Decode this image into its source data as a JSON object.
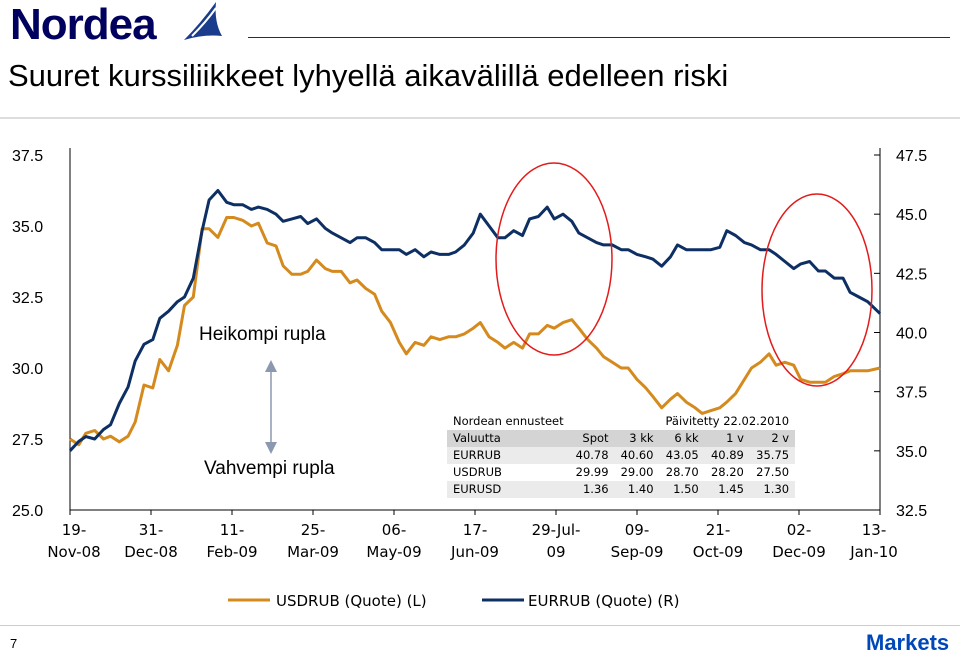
{
  "brand": {
    "name": "Nordea",
    "section": "Markets",
    "page_number": "7",
    "brand_color": "#00005e"
  },
  "slide_title": "Suuret kurssiliikkeet lyhyellä aikavälillä edelleen riski",
  "annotations": {
    "weaker": "Heikompi rupla",
    "stronger": "Vahvempi rupla"
  },
  "forecast_table": {
    "title": "Nordean ennusteet",
    "updated": "Päivitetty 22.02.2010",
    "columns": [
      "Valuutta",
      "Spot",
      "3 kk",
      "6 kk",
      "1 v",
      "2 v"
    ],
    "rows": [
      [
        "EURRUB",
        "40.78",
        "40.60",
        "43.05",
        "40.89",
        "35.75"
      ],
      [
        "USDRUB",
        "29.99",
        "29.00",
        "28.70",
        "28.20",
        "27.50"
      ],
      [
        "EURUSD",
        "1.36",
        "1.40",
        "1.50",
        "1.45",
        "1.30"
      ]
    ]
  },
  "chart_data": {
    "type": "line",
    "x_tick_labels": [
      [
        "19-",
        "Nov-08"
      ],
      [
        "31-",
        "Dec-08"
      ],
      [
        "11-",
        "Feb-09"
      ],
      [
        "25-",
        "Mar-09"
      ],
      [
        "06-",
        "May-09"
      ],
      [
        "17-",
        "Jun-09"
      ],
      [
        "29-Jul-",
        "09"
      ],
      [
        "09-",
        "Sep-09"
      ],
      [
        "21-",
        "Oct-09"
      ],
      [
        "02-",
        "Dec-09"
      ],
      [
        "13-",
        "Jan-10"
      ]
    ],
    "x_range": [
      "2008-11-19",
      "2010-02-22"
    ],
    "left_axis": {
      "ticks": [
        "37.5",
        "35.0",
        "32.5",
        "30.0",
        "27.5",
        "25.0"
      ],
      "ylim": [
        25.0,
        37.5
      ]
    },
    "right_axis": {
      "ticks": [
        "47.5",
        "45.0",
        "42.5",
        "40.0",
        "37.5",
        "35.0",
        "32.5"
      ],
      "ylim": [
        32.5,
        47.5
      ]
    },
    "series": [
      {
        "name": "USDRUB (Quote) (L)",
        "axis": "left",
        "color": "#d58a1e",
        "points": [
          [
            "2008-11-19",
            27.5
          ],
          [
            "2008-11-24",
            27.3
          ],
          [
            "2008-11-28",
            27.7
          ],
          [
            "2008-12-03",
            27.8
          ],
          [
            "2008-12-08",
            27.5
          ],
          [
            "2008-12-12",
            27.6
          ],
          [
            "2008-12-17",
            27.4
          ],
          [
            "2008-12-22",
            27.6
          ],
          [
            "2008-12-26",
            28.1
          ],
          [
            "2008-12-31",
            29.4
          ],
          [
            "2009-01-05",
            29.3
          ],
          [
            "2009-01-09",
            30.3
          ],
          [
            "2009-01-14",
            29.9
          ],
          [
            "2009-01-19",
            30.8
          ],
          [
            "2009-01-23",
            32.2
          ],
          [
            "2009-01-28",
            32.5
          ],
          [
            "2009-02-02",
            34.9
          ],
          [
            "2009-02-06",
            34.9
          ],
          [
            "2009-02-11",
            34.6
          ],
          [
            "2009-02-16",
            35.3
          ],
          [
            "2009-02-20",
            35.3
          ],
          [
            "2009-02-25",
            35.2
          ],
          [
            "2009-03-02",
            35.0
          ],
          [
            "2009-03-06",
            35.1
          ],
          [
            "2009-03-11",
            34.4
          ],
          [
            "2009-03-16",
            34.3
          ],
          [
            "2009-03-20",
            33.6
          ],
          [
            "2009-03-25",
            33.3
          ],
          [
            "2009-03-30",
            33.3
          ],
          [
            "2009-04-03",
            33.4
          ],
          [
            "2009-04-08",
            33.8
          ],
          [
            "2009-04-13",
            33.5
          ],
          [
            "2009-04-17",
            33.4
          ],
          [
            "2009-04-22",
            33.4
          ],
          [
            "2009-04-27",
            33.0
          ],
          [
            "2009-05-01",
            33.1
          ],
          [
            "2009-05-06",
            32.8
          ],
          [
            "2009-05-11",
            32.6
          ],
          [
            "2009-05-15",
            32.0
          ],
          [
            "2009-05-20",
            31.6
          ],
          [
            "2009-05-25",
            30.9
          ],
          [
            "2009-05-29",
            30.5
          ],
          [
            "2009-06-03",
            30.9
          ],
          [
            "2009-06-08",
            30.8
          ],
          [
            "2009-06-12",
            31.1
          ],
          [
            "2009-06-17",
            31.0
          ],
          [
            "2009-06-22",
            31.1
          ],
          [
            "2009-06-26",
            31.1
          ],
          [
            "2009-07-01",
            31.2
          ],
          [
            "2009-07-06",
            31.4
          ],
          [
            "2009-07-10",
            31.6
          ],
          [
            "2009-07-15",
            31.1
          ],
          [
            "2009-07-20",
            30.9
          ],
          [
            "2009-07-24",
            30.7
          ],
          [
            "2009-07-29",
            30.9
          ],
          [
            "2009-08-03",
            30.7
          ],
          [
            "2009-08-07",
            31.2
          ],
          [
            "2009-08-12",
            31.2
          ],
          [
            "2009-08-17",
            31.5
          ],
          [
            "2009-08-21",
            31.4
          ],
          [
            "2009-08-26",
            31.6
          ],
          [
            "2009-08-31",
            31.7
          ],
          [
            "2009-09-04",
            31.4
          ],
          [
            "2009-09-09",
            31.0
          ],
          [
            "2009-09-14",
            30.7
          ],
          [
            "2009-09-18",
            30.4
          ],
          [
            "2009-09-23",
            30.2
          ],
          [
            "2009-09-28",
            30.0
          ],
          [
            "2009-10-02",
            30.0
          ],
          [
            "2009-10-07",
            29.6
          ],
          [
            "2009-10-12",
            29.3
          ],
          [
            "2009-10-16",
            29.0
          ],
          [
            "2009-10-21",
            28.6
          ],
          [
            "2009-10-26",
            28.9
          ],
          [
            "2009-10-30",
            29.1
          ],
          [
            "2009-11-04",
            28.8
          ],
          [
            "2009-11-09",
            28.6
          ],
          [
            "2009-11-13",
            28.4
          ],
          [
            "2009-11-18",
            28.5
          ],
          [
            "2009-11-23",
            28.6
          ],
          [
            "2009-11-27",
            28.8
          ],
          [
            "2009-12-02",
            29.1
          ],
          [
            "2009-12-07",
            29.6
          ],
          [
            "2009-12-11",
            30.0
          ],
          [
            "2009-12-16",
            30.2
          ],
          [
            "2009-12-21",
            30.5
          ],
          [
            "2009-12-25",
            30.1
          ],
          [
            "2009-12-30",
            30.2
          ],
          [
            "2010-01-04",
            30.1
          ],
          [
            "2010-01-08",
            29.6
          ],
          [
            "2010-01-13",
            29.5
          ],
          [
            "2010-01-18",
            29.5
          ],
          [
            "2010-01-22",
            29.5
          ],
          [
            "2010-01-27",
            29.7
          ],
          [
            "2010-02-01",
            29.8
          ],
          [
            "2010-02-05",
            29.9
          ],
          [
            "2010-02-10",
            29.9
          ],
          [
            "2010-02-15",
            29.9
          ],
          [
            "2010-02-22",
            30.0
          ]
        ]
      },
      {
        "name": "EURRUB (Quote) (R)",
        "axis": "right",
        "color": "#0d2f63",
        "points": [
          [
            "2008-11-19",
            35.0
          ],
          [
            "2008-11-24",
            35.4
          ],
          [
            "2008-11-28",
            35.6
          ],
          [
            "2008-12-03",
            35.5
          ],
          [
            "2008-12-08",
            35.9
          ],
          [
            "2008-12-12",
            36.1
          ],
          [
            "2008-12-17",
            37.0
          ],
          [
            "2008-12-22",
            37.7
          ],
          [
            "2008-12-26",
            38.8
          ],
          [
            "2008-12-31",
            39.5
          ],
          [
            "2009-01-05",
            39.7
          ],
          [
            "2009-01-09",
            40.6
          ],
          [
            "2009-01-14",
            40.9
          ],
          [
            "2009-01-19",
            41.3
          ],
          [
            "2009-01-23",
            41.5
          ],
          [
            "2009-01-28",
            42.3
          ],
          [
            "2009-02-02",
            44.3
          ],
          [
            "2009-02-06",
            45.6
          ],
          [
            "2009-02-11",
            46.0
          ],
          [
            "2009-02-16",
            45.5
          ],
          [
            "2009-02-20",
            45.4
          ],
          [
            "2009-02-25",
            45.4
          ],
          [
            "2009-03-02",
            45.2
          ],
          [
            "2009-03-06",
            45.3
          ],
          [
            "2009-03-11",
            45.2
          ],
          [
            "2009-03-16",
            45.0
          ],
          [
            "2009-03-20",
            44.7
          ],
          [
            "2009-03-25",
            44.8
          ],
          [
            "2009-03-30",
            44.9
          ],
          [
            "2009-04-03",
            44.6
          ],
          [
            "2009-04-08",
            44.8
          ],
          [
            "2009-04-13",
            44.4
          ],
          [
            "2009-04-17",
            44.2
          ],
          [
            "2009-04-22",
            44.0
          ],
          [
            "2009-04-27",
            43.8
          ],
          [
            "2009-05-01",
            44.0
          ],
          [
            "2009-05-06",
            44.0
          ],
          [
            "2009-05-11",
            43.8
          ],
          [
            "2009-05-15",
            43.5
          ],
          [
            "2009-05-20",
            43.5
          ],
          [
            "2009-05-25",
            43.5
          ],
          [
            "2009-05-29",
            43.3
          ],
          [
            "2009-06-03",
            43.5
          ],
          [
            "2009-06-08",
            43.2
          ],
          [
            "2009-06-12",
            43.4
          ],
          [
            "2009-06-17",
            43.3
          ],
          [
            "2009-06-22",
            43.3
          ],
          [
            "2009-06-26",
            43.4
          ],
          [
            "2009-07-01",
            43.7
          ],
          [
            "2009-07-06",
            44.2
          ],
          [
            "2009-07-10",
            45.0
          ],
          [
            "2009-07-15",
            44.5
          ],
          [
            "2009-07-20",
            44.0
          ],
          [
            "2009-07-24",
            44.0
          ],
          [
            "2009-07-29",
            44.3
          ],
          [
            "2009-08-03",
            44.1
          ],
          [
            "2009-08-07",
            44.8
          ],
          [
            "2009-08-12",
            44.9
          ],
          [
            "2009-08-17",
            45.3
          ],
          [
            "2009-08-21",
            44.8
          ],
          [
            "2009-08-26",
            45.0
          ],
          [
            "2009-08-31",
            44.7
          ],
          [
            "2009-09-04",
            44.2
          ],
          [
            "2009-09-09",
            44.0
          ],
          [
            "2009-09-14",
            43.8
          ],
          [
            "2009-09-18",
            43.7
          ],
          [
            "2009-09-23",
            43.7
          ],
          [
            "2009-09-28",
            43.5
          ],
          [
            "2009-10-02",
            43.5
          ],
          [
            "2009-10-07",
            43.3
          ],
          [
            "2009-10-12",
            43.2
          ],
          [
            "2009-10-16",
            43.1
          ],
          [
            "2009-10-21",
            42.8
          ],
          [
            "2009-10-26",
            43.2
          ],
          [
            "2009-10-30",
            43.7
          ],
          [
            "2009-11-04",
            43.5
          ],
          [
            "2009-11-09",
            43.5
          ],
          [
            "2009-11-13",
            43.5
          ],
          [
            "2009-11-18",
            43.5
          ],
          [
            "2009-11-23",
            43.6
          ],
          [
            "2009-11-27",
            44.3
          ],
          [
            "2009-12-02",
            44.1
          ],
          [
            "2009-12-07",
            43.8
          ],
          [
            "2009-12-11",
            43.7
          ],
          [
            "2009-12-16",
            43.5
          ],
          [
            "2009-12-21",
            43.5
          ],
          [
            "2009-12-25",
            43.3
          ],
          [
            "2009-12-30",
            43.0
          ],
          [
            "2010-01-04",
            42.7
          ],
          [
            "2010-01-08",
            42.9
          ],
          [
            "2010-01-13",
            43.0
          ],
          [
            "2010-01-18",
            42.6
          ],
          [
            "2010-01-22",
            42.6
          ],
          [
            "2010-01-27",
            42.3
          ],
          [
            "2010-02-01",
            42.3
          ],
          [
            "2010-02-05",
            41.7
          ],
          [
            "2010-02-10",
            41.5
          ],
          [
            "2010-02-15",
            41.3
          ],
          [
            "2010-02-22",
            40.8
          ]
        ]
      }
    ],
    "legend_position": "bottom",
    "grid": false,
    "highlight_circles": [
      "2009-06-22 to 2009-09-07",
      "2009-11-13 to 2010-01-06"
    ]
  }
}
